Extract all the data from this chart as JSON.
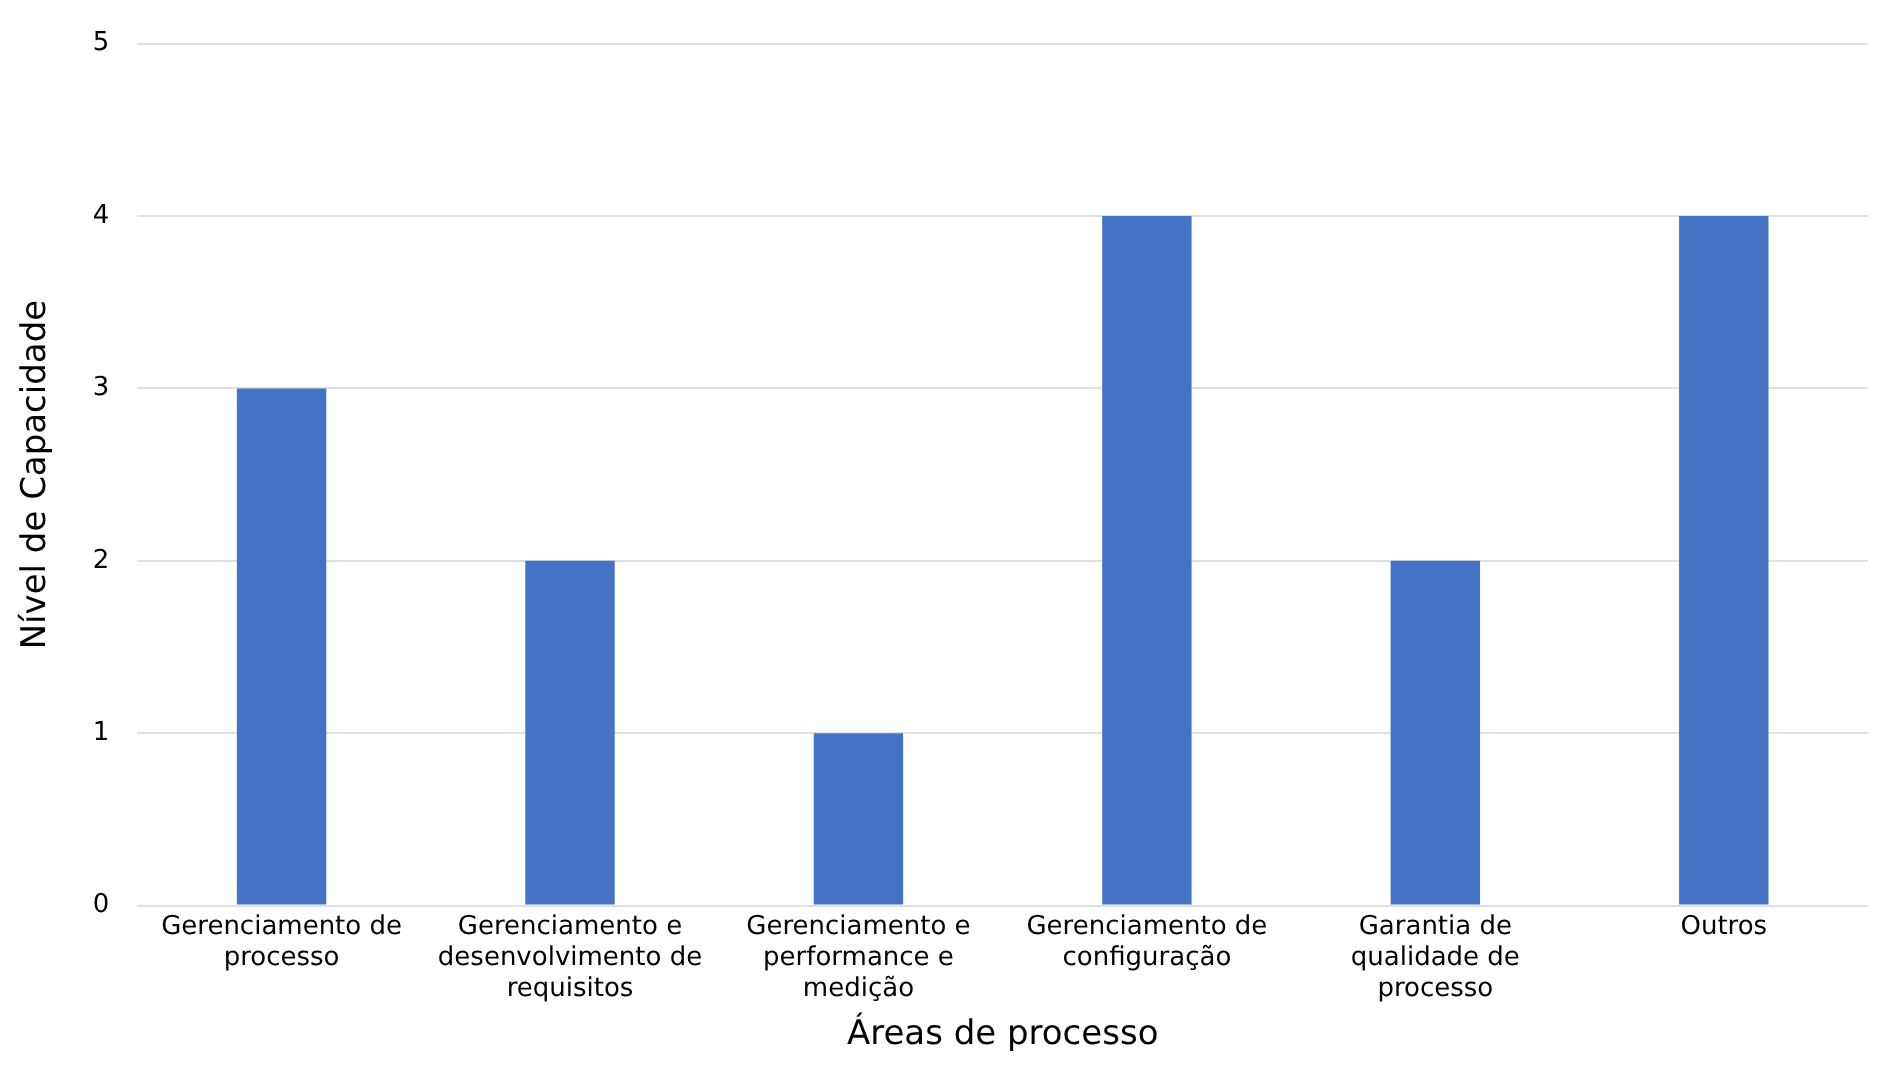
{
  "chart_data": {
    "type": "bar",
    "xlabel": "Áreas de processo",
    "ylabel": "Nível de Capacidade",
    "categories": [
      "Gerenciamento de processo",
      "Gerenciamento e desenvolvimento de requisitos",
      "Gerenciamento e performance e medição",
      "Gerenciamento de configuração",
      "Garantia de qualidade de processo",
      "Outros"
    ],
    "values": [
      3,
      2,
      1,
      4,
      2,
      4
    ],
    "color": "#4472c4",
    "ylim": [
      0,
      5
    ],
    "yticks": [
      0,
      1,
      2,
      3,
      4,
      5
    ],
    "grid": "y"
  }
}
